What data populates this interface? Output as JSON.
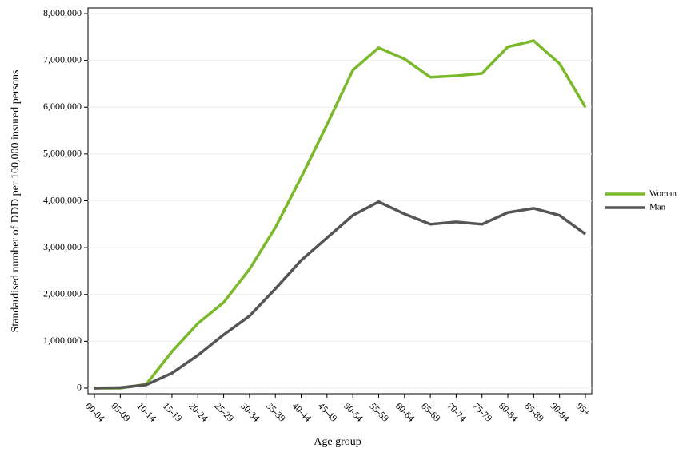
{
  "chart_data": {
    "type": "line",
    "xlabel": "Age group",
    "ylabel": "Standardised number of DDD per 100,000 insured persons",
    "categories": [
      "00-04",
      "05-09",
      "10-14",
      "15-19",
      "20-24",
      "25-29",
      "30-34",
      "35-39",
      "40-44",
      "45-49",
      "50-54",
      "55-59",
      "60-64",
      "65-69",
      "70-74",
      "75-79",
      "80-84",
      "85-89",
      "90-94",
      "95+"
    ],
    "series": [
      {
        "name": "Woman",
        "color": "#7ab929",
        "values": [
          0,
          0,
          80000,
          780000,
          1380000,
          1830000,
          2540000,
          3430000,
          4500000,
          5630000,
          6790000,
          7270000,
          7030000,
          6640000,
          6670000,
          6720000,
          7290000,
          7420000,
          6930000,
          6000000
        ]
      },
      {
        "name": "Man",
        "color": "#555555",
        "values": [
          0,
          10000,
          70000,
          320000,
          700000,
          1140000,
          1540000,
          2120000,
          2730000,
          3210000,
          3690000,
          3980000,
          3720000,
          3500000,
          3550000,
          3500000,
          3750000,
          3840000,
          3690000,
          3290000
        ]
      }
    ],
    "ylim": [
      -120000,
      8120000
    ],
    "yticks": [
      {
        "value": 0,
        "label": "0"
      },
      {
        "value": 1000000,
        "label": "1,000,000"
      },
      {
        "value": 2000000,
        "label": "2,000,000"
      },
      {
        "value": 3000000,
        "label": "3,000,000"
      },
      {
        "value": 4000000,
        "label": "4,000,000"
      },
      {
        "value": 5000000,
        "label": "5,000,000"
      },
      {
        "value": 6000000,
        "label": "6,000,000"
      },
      {
        "value": 7000000,
        "label": "7,000,000"
      },
      {
        "value": 8000000,
        "label": "8,000,000"
      }
    ],
    "grid": true,
    "legend": "right"
  }
}
